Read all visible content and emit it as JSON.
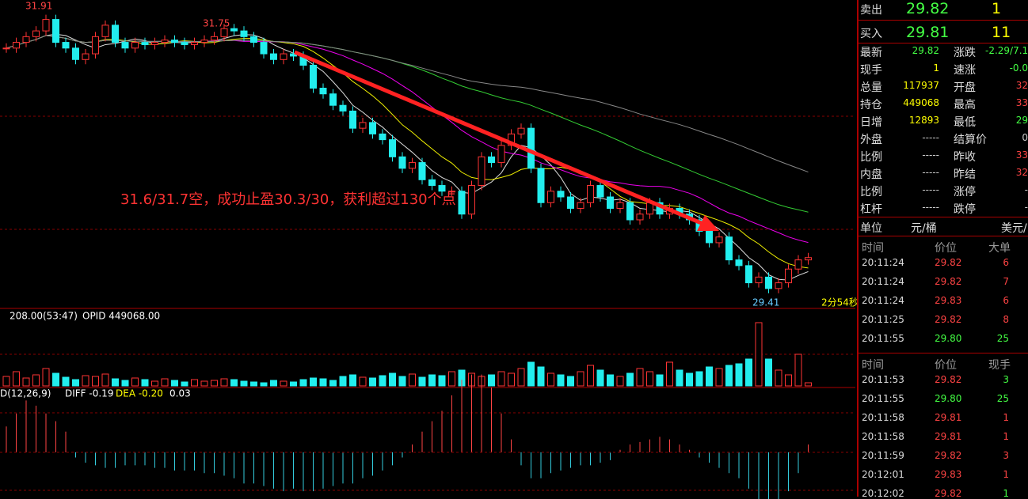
{
  "chart_data": {
    "type": "candlestick",
    "closes": [
      31.55,
      31.6,
      31.65,
      31.7,
      31.8,
      31.6,
      31.55,
      31.45,
      31.5,
      31.65,
      31.75,
      31.6,
      31.55,
      31.6,
      31.58,
      31.6,
      31.62,
      31.6,
      31.58,
      31.6,
      31.62,
      31.65,
      31.72,
      31.7,
      31.65,
      31.6,
      31.5,
      31.45,
      31.5,
      31.48,
      31.4,
      31.2,
      31.15,
      31.05,
      31.0,
      30.85,
      30.9,
      30.8,
      30.75,
      30.6,
      30.5,
      30.55,
      30.4,
      30.35,
      30.3,
      30.3,
      30.1,
      30.35,
      30.6,
      30.55,
      30.7,
      30.8,
      30.85,
      30.5,
      30.2,
      30.3,
      30.25,
      30.15,
      30.2,
      30.35,
      30.25,
      30.15,
      30.2,
      30.05,
      30.1,
      30.2,
      30.1,
      30.15,
      30.1,
      30.05,
      29.95,
      29.85,
      29.9,
      29.7,
      29.65,
      29.5,
      29.55,
      29.45,
      29.5,
      29.62,
      29.7,
      29.72
    ],
    "ylim": [
      29.29,
      31.97
    ],
    "volume": [
      12,
      18,
      10,
      14,
      22,
      16,
      11,
      8,
      13,
      12,
      15,
      9,
      7,
      10,
      8,
      6,
      9,
      7,
      5,
      8,
      6,
      7,
      9,
      8,
      6,
      5,
      4,
      7,
      6,
      5,
      8,
      10,
      9,
      7,
      12,
      14,
      11,
      10,
      13,
      16,
      12,
      15,
      11,
      14,
      13,
      18,
      20,
      16,
      12,
      14,
      18,
      16,
      22,
      30,
      24,
      16,
      14,
      12,
      18,
      26,
      20,
      14,
      12,
      16,
      22,
      18,
      14,
      30,
      20,
      16,
      18,
      24,
      22,
      26,
      28,
      34,
      80,
      34,
      20,
      14,
      40,
      4
    ],
    "vlim": [
      0,
      82
    ],
    "macd": [
      0.1,
      0.15,
      0.2,
      0.18,
      0.15,
      0.12,
      0.08,
      -0.02,
      -0.04,
      -0.05,
      -0.06,
      -0.06,
      -0.05,
      -0.05,
      -0.05,
      -0.06,
      -0.06,
      -0.07,
      -0.07,
      -0.07,
      -0.08,
      -0.08,
      -0.09,
      -0.1,
      -0.12,
      -0.12,
      -0.13,
      -0.14,
      -0.15,
      -0.14,
      -0.15,
      -0.15,
      -0.14,
      -0.13,
      -0.12,
      -0.12,
      -0.1,
      -0.09,
      -0.07,
      -0.05,
      -0.02,
      0.03,
      0.08,
      0.12,
      0.16,
      0.22,
      0.28,
      0.3,
      0.3,
      0.25,
      0.15,
      0.05,
      -0.05,
      -0.1,
      -0.1,
      -0.08,
      -0.07,
      -0.06,
      -0.05,
      -0.05,
      -0.04,
      -0.03,
      0.01,
      0.03,
      0.04,
      0.05,
      0.06,
      0.05,
      0.03,
      0.01,
      -0.02,
      -0.04,
      -0.06,
      -0.08,
      -0.1,
      -0.14,
      -0.2,
      -0.25,
      -0.22,
      -0.15,
      -0.08,
      0.03
    ],
    "macd_lim": [
      -0.28,
      0.33
    ],
    "high_label": "31.91",
    "mid_label": "31.75",
    "low_label": "29.41",
    "timer": "2分54秒",
    "annotation": "31.6/31.7空，成功止盈30.3/30，获利超过130个点",
    "vol_info": [
      "208.00(53:47)",
      "OPID 449068.00"
    ],
    "macd_info": [
      "D(12,26,9)",
      "DIFF -0.19",
      "DEA -0.20",
      "0.03"
    ]
  },
  "quote": {
    "sell": [
      "卖出",
      "29.82",
      "1"
    ],
    "buy": [
      "买入",
      "29.81",
      "11"
    ],
    "left": [
      [
        "最新",
        "29.82"
      ],
      [
        "现手",
        "1"
      ],
      [
        "总量",
        "117937"
      ],
      [
        "持仓",
        "449068"
      ],
      [
        "日增",
        "12893"
      ],
      [
        "外盘",
        "-----"
      ],
      [
        "比例",
        "-----"
      ],
      [
        "内盘",
        "-----"
      ],
      [
        "比例",
        "-----"
      ],
      [
        "杠杆",
        "-----"
      ]
    ],
    "right": [
      [
        "涨跌",
        "-2.29/7.1"
      ],
      [
        "速涨",
        "-0.0"
      ],
      [
        "开盘",
        "32"
      ],
      [
        "最高",
        "33"
      ],
      [
        "最低",
        "29"
      ],
      [
        "结算价",
        "0"
      ],
      [
        "昨收",
        "33"
      ],
      [
        "昨结",
        "32"
      ],
      [
        "涨停",
        "-"
      ],
      [
        "跌停",
        "-"
      ]
    ],
    "unit": [
      "单位",
      "元/桶",
      "美元/"
    ]
  },
  "ticks1": {
    "header": [
      "时间",
      "价位",
      "大单"
    ],
    "rows": [
      [
        "20:11:24",
        "29.82",
        "6"
      ],
      [
        "20:11:24",
        "29.82",
        "7"
      ],
      [
        "20:11:24",
        "29.83",
        "6"
      ],
      [
        "20:11:25",
        "29.82",
        "8"
      ],
      [
        "20:11:55",
        "29.80",
        "25"
      ]
    ]
  },
  "ticks2": {
    "header": [
      "时间",
      "价位",
      "现手"
    ],
    "rows": [
      [
        "20:11:53",
        "29.82",
        "3"
      ],
      [
        "20:11:55",
        "29.80",
        "25"
      ],
      [
        "20:11:58",
        "29.81",
        "1"
      ],
      [
        "20:11:58",
        "29.81",
        "1"
      ],
      [
        "20:11:59",
        "29.82",
        "3"
      ],
      [
        "20:12:01",
        "29.83",
        "1"
      ],
      [
        "20:12:02",
        "29.82",
        "1"
      ]
    ]
  }
}
